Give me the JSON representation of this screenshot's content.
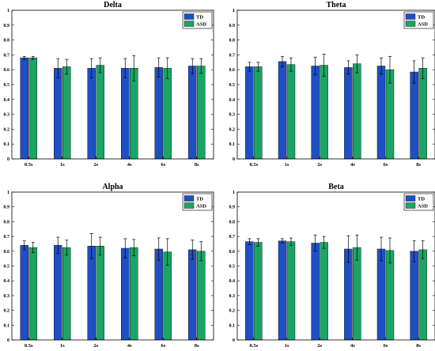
{
  "chart_data": [
    {
      "type": "bar",
      "title": "Delta",
      "categories": [
        "0.5s",
        "1s",
        "2s",
        "4s",
        "6s",
        "8s"
      ],
      "series": [
        {
          "name": "TD",
          "values": [
            0.68,
            0.61,
            0.61,
            0.61,
            0.615,
            0.625
          ],
          "errors": [
            0.01,
            0.065,
            0.065,
            0.065,
            0.065,
            0.05
          ]
        },
        {
          "name": "ASD",
          "values": [
            0.68,
            0.62,
            0.63,
            0.61,
            0.61,
            0.625
          ],
          "errors": [
            0.01,
            0.05,
            0.05,
            0.085,
            0.07,
            0.05
          ]
        }
      ],
      "ylim": [
        0,
        1
      ],
      "yticks": [
        "0",
        "0.1",
        "0.2",
        "0.3",
        "0.4",
        "0.5",
        "0.6",
        "0.7",
        "0.8",
        "0.9",
        "1"
      ],
      "legend": "top-right"
    },
    {
      "type": "bar",
      "title": "Theta",
      "categories": [
        "0.5s",
        "1s",
        "2s",
        "4s",
        "6s",
        "8s"
      ],
      "series": [
        {
          "name": "TD",
          "values": [
            0.62,
            0.655,
            0.625,
            0.615,
            0.625,
            0.585
          ],
          "errors": [
            0.03,
            0.035,
            0.06,
            0.045,
            0.055,
            0.075
          ]
        },
        {
          "name": "ASD",
          "values": [
            0.62,
            0.635,
            0.63,
            0.64,
            0.6,
            0.61
          ],
          "errors": [
            0.03,
            0.045,
            0.075,
            0.06,
            0.09,
            0.07
          ]
        }
      ],
      "ylim": [
        0,
        1
      ],
      "yticks": [
        "0",
        "0.1",
        "0.2",
        "0.3",
        "0.4",
        "0.5",
        "0.6",
        "0.7",
        "0.8",
        "0.9",
        "1"
      ],
      "legend": "top-right"
    },
    {
      "type": "bar",
      "title": "Alpha",
      "categories": [
        "0.5s",
        "1s",
        "2s",
        "4s",
        "6s",
        "8s"
      ],
      "series": [
        {
          "name": "TD",
          "values": [
            0.64,
            0.64,
            0.635,
            0.62,
            0.615,
            0.61
          ],
          "errors": [
            0.03,
            0.055,
            0.085,
            0.065,
            0.075,
            0.065
          ]
        },
        {
          "name": "ASD",
          "values": [
            0.625,
            0.625,
            0.635,
            0.625,
            0.595,
            0.6
          ],
          "errors": [
            0.035,
            0.05,
            0.06,
            0.055,
            0.09,
            0.065
          ]
        }
      ],
      "ylim": [
        0,
        1
      ],
      "yticks": [
        "0",
        "0.1",
        "0.2",
        "0.3",
        "0.4",
        "0.5",
        "0.6",
        "0.7",
        "0.8",
        "0.9",
        "1"
      ],
      "legend": "top-right"
    },
    {
      "type": "bar",
      "title": "Beta",
      "categories": [
        "0.5s",
        "1s",
        "2s",
        "4s",
        "6s",
        "8s"
      ],
      "series": [
        {
          "name": "TD",
          "values": [
            0.665,
            0.67,
            0.655,
            0.615,
            0.615,
            0.6
          ],
          "errors": [
            0.02,
            0.015,
            0.055,
            0.09,
            0.08,
            0.07
          ]
        },
        {
          "name": "ASD",
          "values": [
            0.66,
            0.665,
            0.66,
            0.625,
            0.605,
            0.61
          ],
          "errors": [
            0.025,
            0.025,
            0.04,
            0.085,
            0.085,
            0.06
          ]
        }
      ],
      "ylim": [
        0,
        1
      ],
      "yticks": [
        "0",
        "0.1",
        "0.2",
        "0.3",
        "0.4",
        "0.5",
        "0.6",
        "0.7",
        "0.8",
        "0.9",
        "1"
      ],
      "legend": "top-right"
    }
  ],
  "colors": {
    "TD": "#1f4fc4",
    "ASD": "#1aa563",
    "axis": "#000000",
    "background": "#ffffff"
  }
}
